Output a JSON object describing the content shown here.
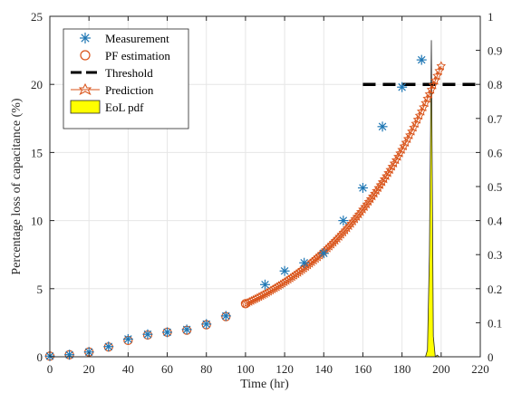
{
  "chart_data": {
    "type": "line",
    "xlabel": "Time (hr)",
    "ylabel": "Percentage loss of capacitance (%)",
    "xlim": [
      0,
      220
    ],
    "ylim": [
      0,
      25
    ],
    "y2lim": [
      0,
      1
    ],
    "xticks": [
      0,
      20,
      40,
      60,
      80,
      100,
      120,
      140,
      160,
      180,
      200,
      220
    ],
    "yticks": [
      0,
      5,
      10,
      15,
      20,
      25
    ],
    "y2ticks": [
      0,
      0.1,
      0.2,
      0.3,
      0.4,
      0.5,
      0.6,
      0.7,
      0.8,
      0.9,
      1
    ],
    "grid": true,
    "legend_position": "top-left",
    "series": [
      {
        "name": "Measurement",
        "marker": "asterisk",
        "color": "#1f77b4",
        "x": [
          0,
          10,
          20,
          30,
          40,
          50,
          60,
          70,
          80,
          90,
          110,
          120,
          130,
          140,
          150,
          160,
          170,
          180,
          190
        ],
        "y": [
          0.05,
          0.15,
          0.35,
          0.75,
          1.3,
          1.65,
          1.8,
          2.0,
          2.4,
          3.0,
          5.3,
          6.3,
          6.9,
          7.6,
          10.0,
          12.4,
          16.9,
          19.8,
          21.8
        ]
      },
      {
        "name": "PF estimation",
        "marker": "circle",
        "color": "#d95319",
        "x": [
          0,
          10,
          20,
          30,
          40,
          50,
          60,
          70,
          80,
          90,
          100
        ],
        "y": [
          0.05,
          0.15,
          0.35,
          0.72,
          1.2,
          1.6,
          1.8,
          1.95,
          2.35,
          2.95,
          3.9
        ]
      },
      {
        "name": "Threshold",
        "style": "dashed",
        "color": "#000000",
        "x": [
          160,
          220
        ],
        "y": [
          20,
          20
        ]
      },
      {
        "name": "Prediction",
        "marker": "hexagram",
        "color": "#d95319",
        "x_start": 100,
        "x_end": 200,
        "x_step": 1,
        "y_start": 3.9,
        "growth_rate": 0.017
      },
      {
        "name": "EoL pdf",
        "type": "area",
        "axis": "right",
        "color": "#ffff00",
        "x": [
          192,
          193,
          194,
          195,
          196,
          197,
          198,
          199
        ],
        "y": [
          0,
          0.02,
          0.3,
          0.93,
          0.06,
          0.0,
          0.005,
          0.0
        ]
      }
    ]
  }
}
